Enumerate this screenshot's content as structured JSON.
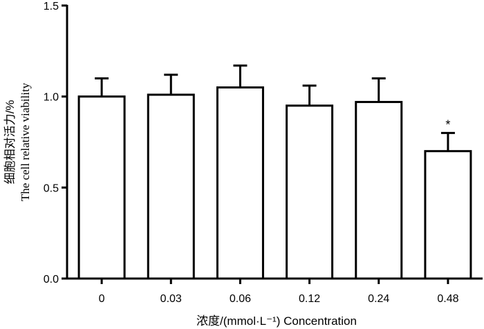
{
  "chart_data": {
    "type": "bar",
    "title": "",
    "xlabel": "浓度/(mmol·L⁻¹)  Concentration",
    "ylabel_lines": [
      "细胞相对活力/%",
      "The cell relative viability"
    ],
    "categories": [
      "0",
      "0.03",
      "0.06",
      "0.12",
      "0.24",
      "0.48"
    ],
    "values": [
      1.0,
      1.01,
      1.05,
      0.95,
      0.97,
      0.7
    ],
    "errors": [
      0.1,
      0.11,
      0.12,
      0.11,
      0.13,
      0.1
    ],
    "annotations": [
      {
        "category": "0.48",
        "text": "*"
      }
    ],
    "ylim": [
      0,
      1.5
    ],
    "yticks": [
      0.0,
      0.5,
      1.0,
      1.5
    ],
    "ytick_labels": [
      "0.0",
      "0.5",
      "1.0",
      "1.5"
    ],
    "grid": false,
    "legend": "none",
    "colors": {
      "bar_fill": "#ffffff",
      "bar_stroke": "#000000",
      "axis": "#000000"
    }
  }
}
